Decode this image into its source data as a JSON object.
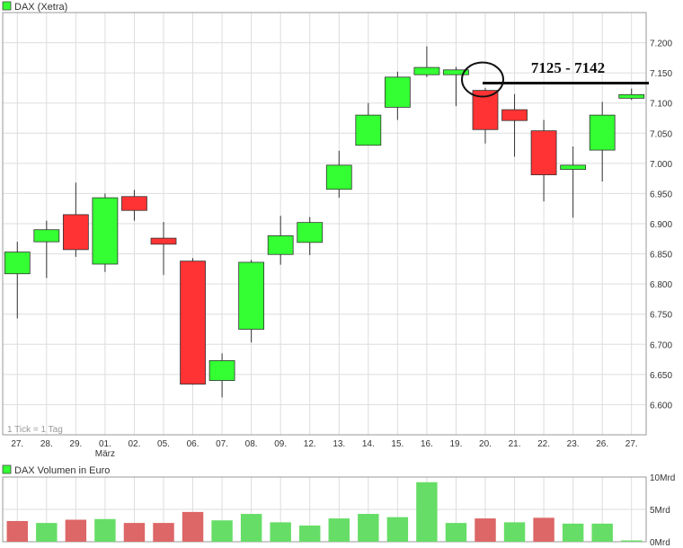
{
  "colors": {
    "up": "#33ff33",
    "down": "#ff3333",
    "vol_up": "#66dd66",
    "vol_down": "#dd6666",
    "grid": "#dddddd",
    "frame": "#999999",
    "text": "#333333",
    "wick": "#333333"
  },
  "chart_data": [
    {
      "type": "candlestick",
      "title": "DAX (Xetra)",
      "legend_icon": "green-square-icon",
      "note": "1 Tick = 1 Tag",
      "annotation": "7125 - 7142",
      "annotation_level": 7133,
      "ylim": [
        6550,
        7250
      ],
      "yticks": [
        6600,
        6650,
        6700,
        6750,
        6800,
        6850,
        6900,
        6950,
        7000,
        7050,
        7100,
        7150,
        7200
      ],
      "ytick_labels": [
        "6.600",
        "6.650",
        "6.700",
        "6.750",
        "6.800",
        "6.850",
        "6.900",
        "6.950",
        "7.000",
        "7.050",
        "7.100",
        "7.150",
        "7.200"
      ],
      "month_label": {
        "index": 3,
        "text": "März"
      },
      "categories": [
        "27.",
        "28.",
        "29.",
        "01.",
        "02.",
        "05.",
        "06.",
        "07.",
        "08.",
        "09.",
        "12.",
        "13.",
        "14.",
        "15.",
        "16.",
        "19.",
        "20.",
        "21.",
        "22.",
        "23.",
        "26.",
        "27."
      ],
      "candles": [
        {
          "open": 6817,
          "high": 6870,
          "low": 6743,
          "close": 6853
        },
        {
          "open": 6870,
          "high": 6905,
          "low": 6810,
          "close": 6890
        },
        {
          "open": 6915,
          "high": 6968,
          "low": 6845,
          "close": 6857
        },
        {
          "open": 6833,
          "high": 6950,
          "low": 6820,
          "close": 6943
        },
        {
          "open": 6945,
          "high": 6956,
          "low": 6905,
          "close": 6922
        },
        {
          "open": 6876,
          "high": 6903,
          "low": 6815,
          "close": 6866
        },
        {
          "open": 6838,
          "high": 6843,
          "low": 6633,
          "close": 6634
        },
        {
          "open": 6640,
          "high": 6685,
          "low": 6612,
          "close": 6673
        },
        {
          "open": 6725,
          "high": 6840,
          "low": 6703,
          "close": 6836
        },
        {
          "open": 6849,
          "high": 6913,
          "low": 6832,
          "close": 6880
        },
        {
          "open": 6869,
          "high": 6911,
          "low": 6848,
          "close": 6902
        },
        {
          "open": 6957,
          "high": 7021,
          "low": 6943,
          "close": 6997
        },
        {
          "open": 7030,
          "high": 7100,
          "low": 7030,
          "close": 7080
        },
        {
          "open": 7093,
          "high": 7152,
          "low": 7072,
          "close": 7143
        },
        {
          "open": 7147,
          "high": 7194,
          "low": 7143,
          "close": 7159
        },
        {
          "open": 7147,
          "high": 7160,
          "low": 7095,
          "close": 7155
        },
        {
          "open": 7121,
          "high": 7125,
          "low": 7033,
          "close": 7056
        },
        {
          "open": 7089,
          "high": 7115,
          "low": 7011,
          "close": 7071
        },
        {
          "open": 7054,
          "high": 7072,
          "low": 6937,
          "close": 6981
        },
        {
          "open": 6990,
          "high": 7028,
          "low": 6910,
          "close": 6997
        },
        {
          "open": 7022,
          "high": 7102,
          "low": 6970,
          "close": 7080
        },
        {
          "open": 7108,
          "high": 7124,
          "low": 7105,
          "close": 7114
        }
      ]
    },
    {
      "type": "bar",
      "title": "DAX Volumen in Euro",
      "legend_icon": "green-square-icon",
      "ylim": [
        0,
        10
      ],
      "yticks": [
        0,
        5,
        10
      ],
      "ytick_labels": [
        "0Mrd",
        "5Mrd",
        "10Mrd"
      ],
      "values": [
        3.2,
        2.9,
        3.4,
        3.5,
        2.9,
        2.9,
        4.6,
        3.3,
        4.3,
        3.0,
        2.5,
        3.6,
        4.3,
        3.8,
        9.2,
        2.9,
        3.6,
        3.0,
        3.7,
        2.8,
        2.8,
        0.2
      ],
      "direction": [
        "down",
        "up",
        "down",
        "up",
        "down",
        "down",
        "down",
        "up",
        "up",
        "up",
        "up",
        "up",
        "up",
        "up",
        "up",
        "up",
        "down",
        "up",
        "down",
        "up",
        "up",
        "up"
      ]
    }
  ]
}
